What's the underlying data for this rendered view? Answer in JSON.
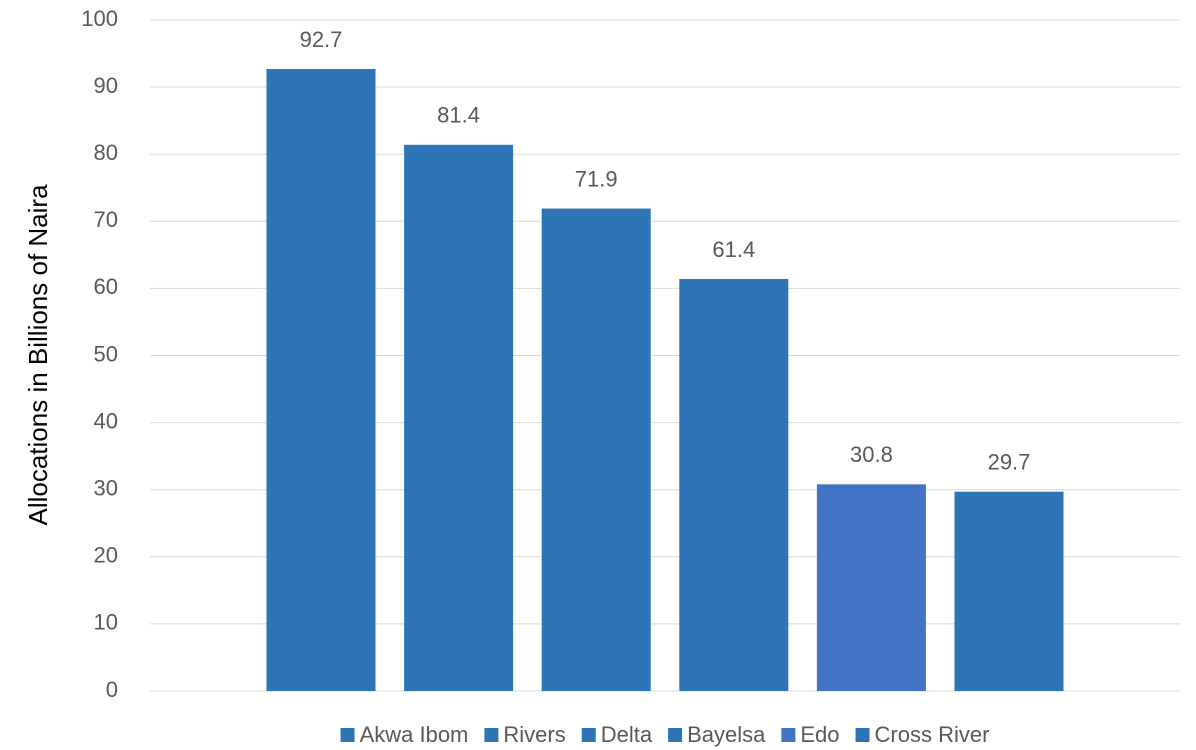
{
  "chart_data": {
    "type": "bar",
    "y_label": "Allocations in Billions of Naira",
    "categories": [
      null
    ],
    "series": [
      {
        "name": "Akwa Ibom",
        "color": "#2e75b6",
        "values": [
          92.7
        ]
      },
      {
        "name": "Rivers",
        "color": "#2e75b6",
        "values": [
          81.4
        ]
      },
      {
        "name": "Delta",
        "color": "#2e75b6",
        "values": [
          71.9
        ]
      },
      {
        "name": "Bayelsa",
        "color": "#2e75b6",
        "values": [
          61.4
        ]
      },
      {
        "name": "Edo",
        "color": "#4472c4",
        "values": [
          30.8
        ]
      },
      {
        "name": "Cross River",
        "color": "#2e75b6",
        "values": [
          29.7
        ]
      }
    ],
    "ylim": [
      0,
      100
    ],
    "yticks": [
      0,
      10,
      20,
      30,
      40,
      50,
      60,
      70,
      80,
      90,
      100
    ],
    "grid": true,
    "legend": "bottom"
  }
}
